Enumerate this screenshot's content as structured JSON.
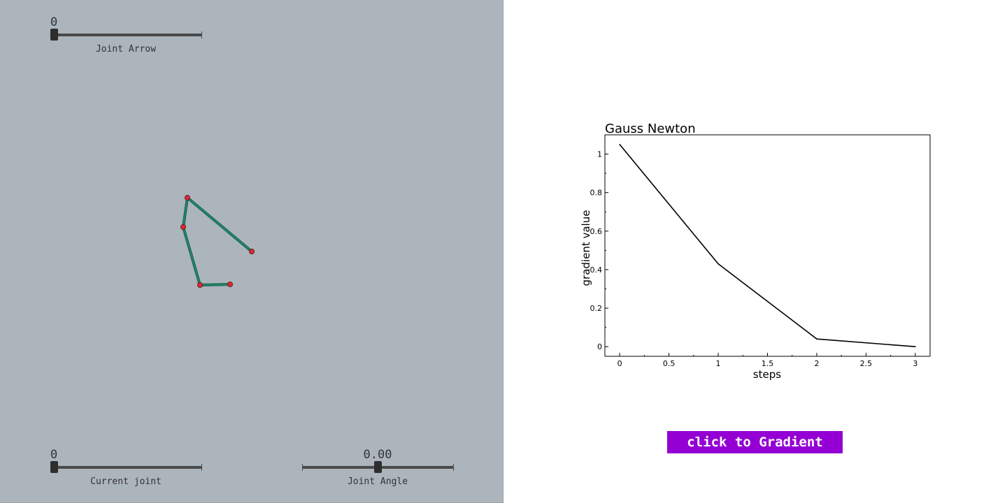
{
  "sliders": {
    "joint_arrow": {
      "value": "0",
      "label": "Joint Arrow",
      "position": 0.0
    },
    "current_joint": {
      "value": "0",
      "label": "Current joint",
      "position": 0.0
    },
    "joint_angle": {
      "value": "0.00",
      "label": "Joint Angle",
      "position": 0.5
    }
  },
  "colors": {
    "panel_bg": "#acb4bc",
    "link": "#1e8a6a",
    "joint": "#d8283a",
    "button_bg": "#9400d3",
    "button_text": "#ffffff"
  },
  "button": {
    "label": "click to Gradient"
  },
  "chart_data": {
    "type": "line",
    "title": "Gauss Newton",
    "xlabel": "steps",
    "ylabel": "gradient value",
    "x": [
      0,
      1,
      2,
      3
    ],
    "series": [
      {
        "values": [
          1.05,
          0.43,
          0.04,
          0.0
        ]
      }
    ],
    "xlim": [
      -0.15,
      3.15
    ],
    "ylim": [
      -0.05,
      1.1
    ],
    "xticks": [
      "0",
      "0.5",
      "1",
      "1.5",
      "2",
      "2.5",
      "3"
    ],
    "yticks": [
      "0",
      "0.2",
      "0.4",
      "0.6",
      "0.8",
      "1"
    ],
    "grid": false
  }
}
